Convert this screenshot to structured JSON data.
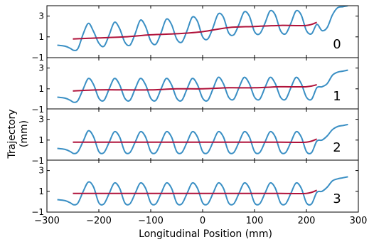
{
  "chart_data": {
    "type": "line",
    "xlabel": "Longitudinal Position (mm)",
    "ylabel_lines": [
      "Trajectory",
      "(mm)"
    ],
    "xlim": [
      -300,
      300
    ],
    "ylim": [
      -1,
      4
    ],
    "x_ticks": [
      -300,
      -200,
      -100,
      0,
      100,
      200,
      300
    ],
    "x_tick_labels": [
      "−300",
      "−200",
      "−100",
      "0",
      "100",
      "200",
      "300"
    ],
    "y_ticks": [
      -1,
      1,
      3
    ],
    "y_tick_labels": [
      "−1",
      "1",
      "3"
    ],
    "grid": false,
    "series_colors": {
      "oscillation": "#3a8fc4",
      "mean": "#b0123a"
    },
    "panels": [
      {
        "label": "0",
        "oscillation": {
          "x": [
            -280,
            -265,
            -255,
            -248,
            -240,
            -230,
            -220,
            -210,
            -200,
            -190,
            -180,
            -170,
            -160,
            -150,
            -140,
            -130,
            -120,
            -110,
            -100,
            -90,
            -80,
            -70,
            -60,
            -50,
            -40,
            -30,
            -20,
            -10,
            0,
            10,
            20,
            30,
            40,
            50,
            60,
            70,
            80,
            90,
            100,
            110,
            120,
            130,
            140,
            150,
            160,
            170,
            180,
            190,
            200,
            210,
            220,
            230,
            240,
            250,
            260,
            270,
            280
          ],
          "y": [
            0.2,
            0.1,
            -0.1,
            -0.3,
            -0.1,
            1.3,
            2.3,
            1.5,
            0.4,
            0.1,
            1.2,
            2.4,
            1.8,
            0.5,
            0.2,
            1.3,
            2.6,
            2.0,
            0.6,
            0.3,
            1.4,
            2.7,
            2.2,
            0.8,
            0.5,
            1.6,
            2.9,
            2.5,
            1.0,
            0.8,
            1.9,
            3.2,
            2.9,
            1.4,
            1.2,
            2.2,
            3.4,
            3.0,
            1.5,
            1.3,
            2.3,
            3.5,
            3.1,
            1.6,
            1.3,
            2.3,
            3.5,
            3.1,
            1.6,
            1.3,
            2.2,
            1.6,
            1.9,
            3.1,
            3.8,
            3.9,
            4.0
          ]
        },
        "mean": {
          "x": [
            -250,
            -200,
            -150,
            -100,
            -50,
            0,
            50,
            100,
            150,
            200,
            220
          ],
          "y": [
            0.8,
            0.9,
            1.0,
            1.2,
            1.3,
            1.5,
            1.9,
            2.0,
            2.1,
            2.1,
            2.4
          ]
        }
      },
      {
        "label": "1",
        "oscillation": {
          "x": [
            -280,
            -265,
            -255,
            -248,
            -240,
            -230,
            -220,
            -210,
            -200,
            -190,
            -180,
            -170,
            -160,
            -150,
            -140,
            -130,
            -120,
            -110,
            -100,
            -90,
            -80,
            -70,
            -60,
            -50,
            -40,
            -30,
            -20,
            -10,
            0,
            10,
            20,
            30,
            40,
            50,
            60,
            70,
            80,
            90,
            100,
            110,
            120,
            130,
            140,
            150,
            160,
            170,
            180,
            190,
            200,
            210,
            220,
            230,
            240,
            250,
            260,
            270,
            280
          ],
          "y": [
            0.2,
            0.1,
            -0.1,
            -0.3,
            -0.1,
            1.0,
            2.0,
            1.4,
            0.1,
            -0.1,
            1.0,
            2.0,
            1.4,
            0.1,
            -0.1,
            1.0,
            2.0,
            1.4,
            0.1,
            -0.1,
            1.0,
            2.0,
            1.4,
            0.1,
            -0.1,
            1.0,
            2.0,
            1.4,
            0.1,
            -0.1,
            1.0,
            2.1,
            1.5,
            0.2,
            0.0,
            1.1,
            2.1,
            1.5,
            0.2,
            0.0,
            1.1,
            2.1,
            1.5,
            0.2,
            0.0,
            1.1,
            2.1,
            1.5,
            0.2,
            0.0,
            1.1,
            1.2,
            1.5,
            2.3,
            2.6,
            2.7,
            2.8
          ]
        },
        "mean": {
          "x": [
            -250,
            -200,
            -150,
            -100,
            -50,
            0,
            50,
            100,
            150,
            200,
            220
          ],
          "y": [
            0.8,
            0.9,
            0.9,
            0.9,
            1.0,
            1.0,
            1.1,
            1.1,
            1.2,
            1.2,
            1.4
          ]
        }
      },
      {
        "label": "2",
        "oscillation": {
          "x": [
            -280,
            -265,
            -255,
            -248,
            -240,
            -230,
            -220,
            -210,
            -200,
            -190,
            -180,
            -170,
            -160,
            -150,
            -140,
            -130,
            -120,
            -110,
            -100,
            -90,
            -80,
            -70,
            -60,
            -50,
            -40,
            -30,
            -20,
            -10,
            0,
            10,
            20,
            30,
            40,
            50,
            60,
            70,
            80,
            90,
            100,
            110,
            120,
            130,
            140,
            150,
            160,
            170,
            180,
            190,
            200,
            210,
            220,
            230,
            240,
            250,
            260,
            270,
            280
          ],
          "y": [
            0.2,
            0.1,
            -0.1,
            -0.3,
            -0.1,
            0.9,
            1.9,
            1.3,
            -0.1,
            -0.2,
            0.8,
            1.8,
            1.3,
            -0.1,
            -0.2,
            0.8,
            1.8,
            1.3,
            -0.1,
            -0.2,
            0.8,
            1.8,
            1.3,
            -0.1,
            -0.2,
            0.8,
            1.8,
            1.3,
            -0.1,
            -0.2,
            0.8,
            1.8,
            1.3,
            -0.1,
            -0.2,
            0.8,
            1.8,
            1.3,
            -0.1,
            -0.2,
            0.8,
            1.8,
            1.3,
            -0.1,
            -0.2,
            0.8,
            1.8,
            1.3,
            -0.1,
            -0.2,
            0.9,
            1.0,
            1.4,
            2.0,
            2.3,
            2.4,
            2.5
          ]
        },
        "mean": {
          "x": [
            -250,
            -200,
            -150,
            -100,
            -50,
            0,
            50,
            100,
            150,
            200,
            220
          ],
          "y": [
            0.8,
            0.8,
            0.8,
            0.8,
            0.8,
            0.8,
            0.8,
            0.8,
            0.8,
            0.8,
            1.1
          ]
        }
      },
      {
        "label": "3",
        "oscillation": {
          "x": [
            -280,
            -265,
            -255,
            -248,
            -240,
            -230,
            -220,
            -210,
            -200,
            -190,
            -180,
            -170,
            -160,
            -150,
            -140,
            -130,
            -120,
            -110,
            -100,
            -90,
            -80,
            -70,
            -60,
            -50,
            -40,
            -30,
            -20,
            -10,
            0,
            10,
            20,
            30,
            40,
            50,
            60,
            70,
            80,
            90,
            100,
            110,
            120,
            130,
            140,
            150,
            160,
            170,
            180,
            190,
            200,
            210,
            220,
            230,
            240,
            250,
            260,
            270,
            280
          ],
          "y": [
            0.2,
            0.1,
            -0.1,
            -0.3,
            -0.1,
            1.0,
            1.9,
            1.4,
            -0.1,
            -0.2,
            0.8,
            1.8,
            1.3,
            -0.1,
            -0.2,
            0.8,
            1.8,
            1.3,
            -0.1,
            -0.2,
            0.8,
            1.8,
            1.3,
            -0.1,
            -0.2,
            0.8,
            1.8,
            1.3,
            -0.1,
            -0.2,
            0.8,
            1.8,
            1.3,
            -0.1,
            -0.2,
            0.8,
            1.8,
            1.3,
            -0.1,
            -0.2,
            0.8,
            1.8,
            1.3,
            -0.1,
            -0.2,
            0.8,
            1.8,
            1.3,
            -0.1,
            -0.2,
            0.9,
            1.0,
            1.4,
            2.0,
            2.2,
            2.3,
            2.4
          ]
        },
        "mean": {
          "x": [
            -250,
            -200,
            -150,
            -100,
            -50,
            0,
            50,
            100,
            150,
            200,
            220
          ],
          "y": [
            0.8,
            0.8,
            0.8,
            0.8,
            0.8,
            0.8,
            0.8,
            0.8,
            0.8,
            0.8,
            1.1
          ]
        }
      }
    ]
  }
}
